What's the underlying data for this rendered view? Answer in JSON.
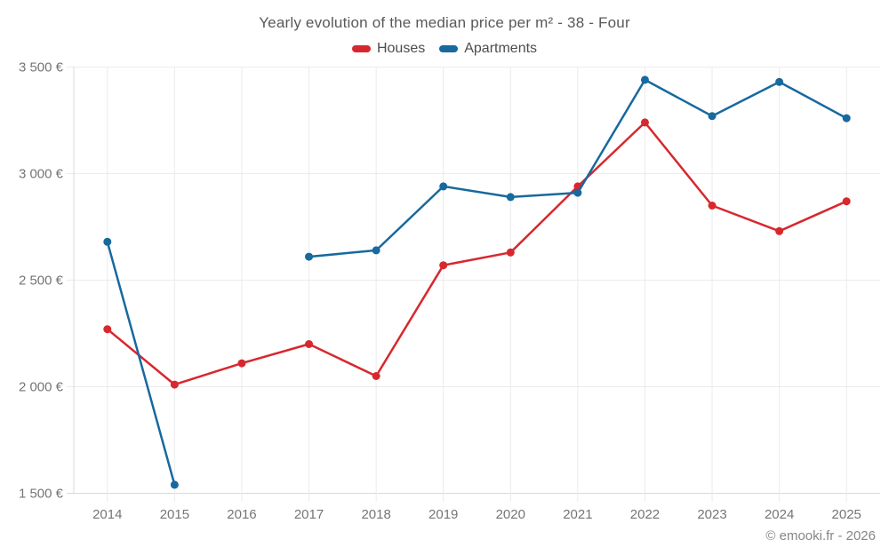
{
  "page": {
    "title": "Yearly evolution of the median price per m² - 38 - Four",
    "footer": "© emooki.fr - 2026"
  },
  "legend": [
    {
      "label": "Houses",
      "color": "#d7282e"
    },
    {
      "label": "Apartments",
      "color": "#17699e"
    }
  ],
  "chart_data": {
    "type": "line",
    "title": "Yearly evolution of the median price per m² - 38 - Four",
    "categories": [
      "2014",
      "2015",
      "2016",
      "2017",
      "2018",
      "2019",
      "2020",
      "2021",
      "2022",
      "2023",
      "2024",
      "2025"
    ],
    "series": [
      {
        "name": "Houses",
        "color": "#d7282e",
        "values": [
          2270,
          2010,
          2110,
          2200,
          2050,
          2570,
          2630,
          2940,
          3240,
          2850,
          2730,
          2870
        ]
      },
      {
        "name": "Apartments",
        "color": "#17699e",
        "values": [
          2680,
          1540,
          null,
          2610,
          2640,
          2940,
          2890,
          2910,
          3440,
          3270,
          3430,
          3260
        ]
      }
    ],
    "xlabel": "",
    "ylabel": "",
    "ylim": [
      1500,
      3500
    ],
    "ytick_step": 500,
    "y_unit": "€",
    "grid": true,
    "legend_position": "top",
    "marker": "circle"
  },
  "colors": {
    "grid": "#ebebeb",
    "axis": "#d9d9d9",
    "tick_label": "#757575"
  }
}
